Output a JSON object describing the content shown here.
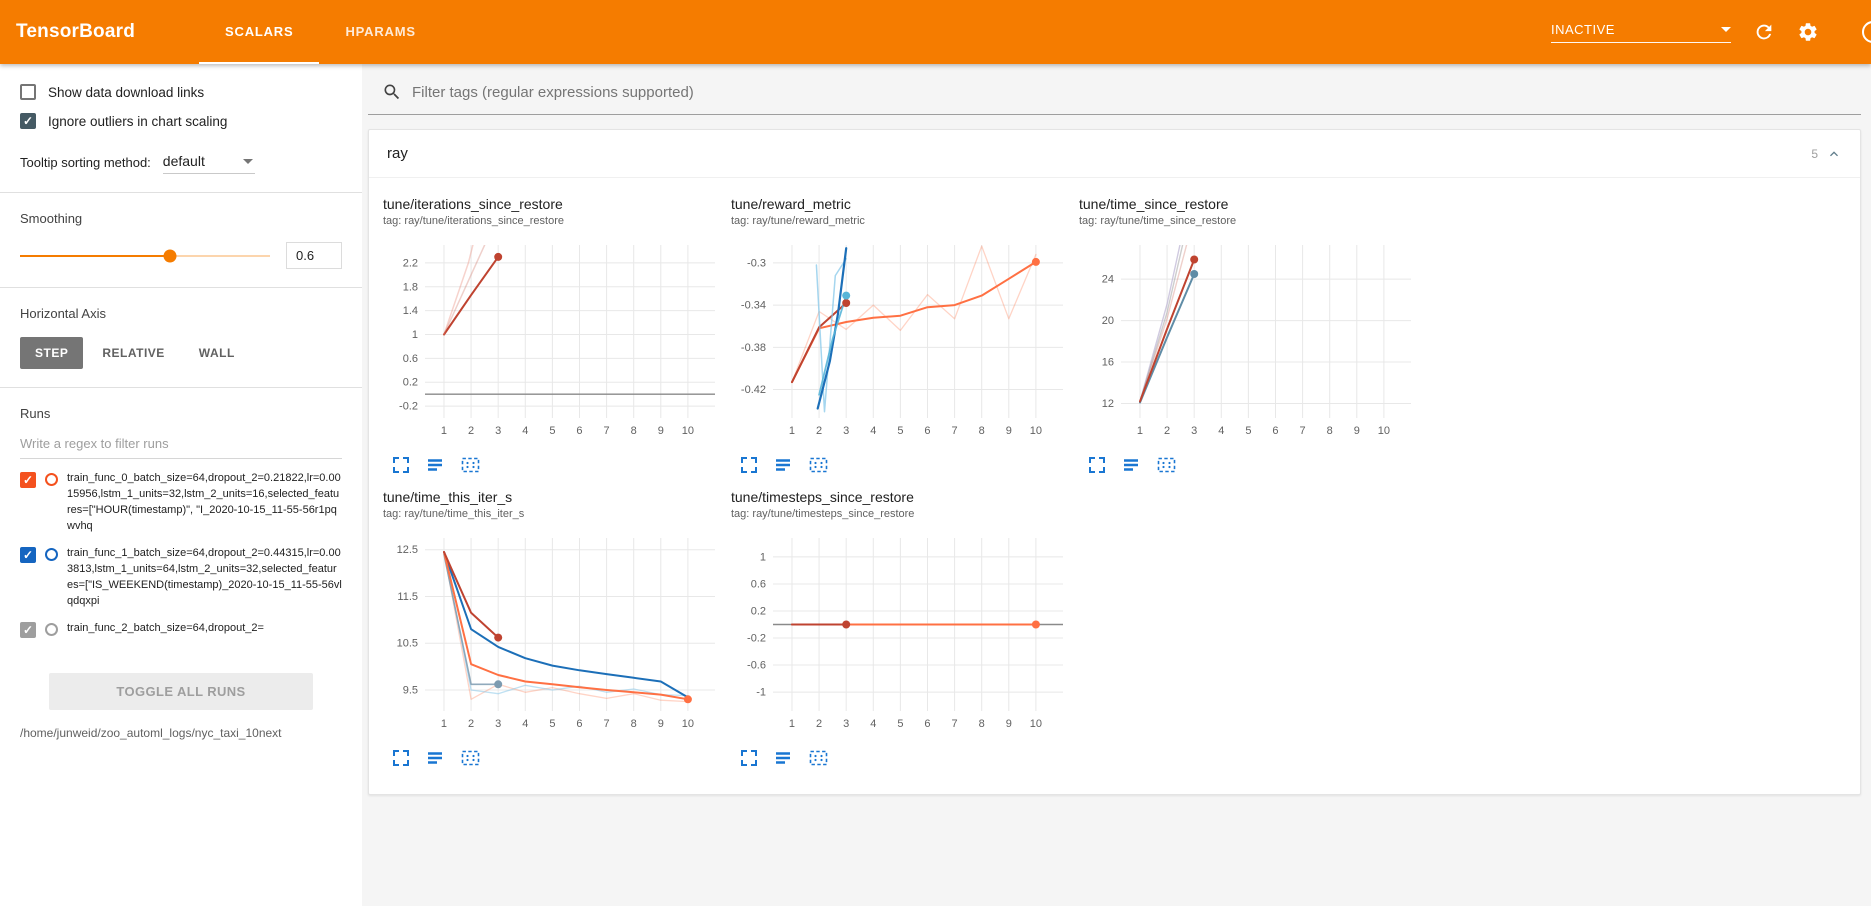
{
  "header": {
    "logo": "TensorBoard",
    "tabs": [
      {
        "label": "SCALARS",
        "active": true
      },
      {
        "label": "HPARAMS",
        "active": false
      }
    ],
    "status_dropdown": "INACTIVE",
    "icons": {
      "refresh": "refresh-icon",
      "settings": "gear-icon",
      "help": "help-icon",
      "dropdown": "chevron-down-icon"
    }
  },
  "sidebar": {
    "checkboxes": [
      {
        "label": "Show data download links",
        "checked": false
      },
      {
        "label": "Ignore outliers in chart scaling",
        "checked": true
      }
    ],
    "tooltip_sort": {
      "label": "Tooltip sorting method:",
      "value": "default"
    },
    "smoothing": {
      "label": "Smoothing",
      "value": "0.6",
      "percent": 60,
      "accent": "#f57c00"
    },
    "horizontal_axis": {
      "label": "Horizontal Axis",
      "options": [
        "STEP",
        "RELATIVE",
        "WALL"
      ],
      "selected": "STEP"
    },
    "runs": {
      "label": "Runs",
      "filter_placeholder": "Write a regex to filter runs",
      "items": [
        {
          "label": "train_func_0_batch_size=64,dropout_2=0.21822,lr=0.0015956,lstm_1_units=32,lstm_2_units=16,selected_features=[\"HOUR(timestamp)\", \"I_2020-10-15_11-55-56r1pqwvhq",
          "checked": true,
          "color": "#f4511e"
        },
        {
          "label": "train_func_1_batch_size=64,dropout_2=0.44315,lr=0.003813,lstm_1_units=64,lstm_2_units=32,selected_features=[\"IS_WEEKEND(timestamp)_2020-10-15_11-55-56vlqdqxpi",
          "checked": true,
          "color": "#1565c0"
        },
        {
          "label": "train_func_2_batch_size=64,dropout_2=",
          "checked": true,
          "color": "#9e9e9e"
        }
      ],
      "toggle_all_label": "TOGGLE ALL RUNS",
      "log_dir": "/home/junweid/zoo_automl_logs/nyc_taxi_10next"
    }
  },
  "main": {
    "filter_placeholder": "Filter tags (regular expressions supported)",
    "card": {
      "title": "ray",
      "count": "5"
    }
  },
  "chart_actions": [
    {
      "name": "expand-icon"
    },
    {
      "name": "data-table-icon"
    },
    {
      "name": "fit-domain-icon"
    }
  ],
  "chart_data": [
    {
      "type": "line",
      "title": "tune/iterations_since_restore",
      "subtitle": "tag: ray/tune/iterations_since_restore",
      "xlim": [
        0.3,
        11.0
      ],
      "ylim": [
        -0.4,
        2.5
      ],
      "xticks": [
        1,
        2,
        3,
        4,
        5,
        6,
        7,
        8,
        9,
        10
      ],
      "yticks": [
        -0.2,
        0.2,
        0.6,
        1,
        1.4,
        1.8,
        2.2
      ],
      "zero_line": true,
      "series": [
        {
          "name": "train_func_0_smoothed",
          "color": "#bf4330",
          "width": 2,
          "opacity": 1,
          "end_dot": true,
          "points": [
            [
              1,
              1.0
            ],
            [
              2,
              1.66
            ],
            [
              3,
              2.3
            ]
          ]
        },
        {
          "name": "train_func_0_raw",
          "color": "#bf4330",
          "width": 1.5,
          "opacity": 0.25,
          "points": [
            [
              1,
              1.0
            ],
            [
              2,
              2.0
            ],
            [
              3,
              3.0
            ]
          ]
        },
        {
          "name": "run_raw_faint",
          "color": "#e88070",
          "width": 1.5,
          "opacity": 0.35,
          "points": [
            [
              1,
              1.0
            ],
            [
              1.9,
              2.2
            ],
            [
              2.4,
              3.1
            ]
          ]
        }
      ]
    },
    {
      "type": "line",
      "title": "tune/reward_metric",
      "subtitle": "tag: ray/tune/reward_metric",
      "xlim": [
        0.3,
        11.0
      ],
      "ylim": [
        -0.447,
        -0.283
      ],
      "xticks": [
        1,
        2,
        3,
        4,
        5,
        6,
        7,
        8,
        9,
        10
      ],
      "yticks": [
        -0.42,
        -0.38,
        -0.34,
        -0.3
      ],
      "zero_line": false,
      "series": [
        {
          "name": "train_func_0_raw",
          "color": "#ff7043",
          "width": 1.3,
          "opacity": 0.3,
          "points": [
            [
              1,
              -0.413
            ],
            [
              2,
              -0.346
            ],
            [
              3,
              -0.363
            ],
            [
              4,
              -0.34
            ],
            [
              5,
              -0.364
            ],
            [
              6,
              -0.33
            ],
            [
              7,
              -0.353
            ],
            [
              8,
              -0.284
            ],
            [
              9,
              -0.353
            ],
            [
              10,
              -0.292
            ]
          ]
        },
        {
          "name": "train_func_0_smoothed",
          "color": "#ff7043",
          "width": 2,
          "opacity": 1,
          "end_dot": true,
          "points": [
            [
              1,
              -0.413
            ],
            [
              2,
              -0.362
            ],
            [
              3,
              -0.356
            ],
            [
              4,
              -0.352
            ],
            [
              5,
              -0.35
            ],
            [
              6,
              -0.342
            ],
            [
              7,
              -0.34
            ],
            [
              8,
              -0.331
            ],
            [
              9,
              -0.315
            ],
            [
              10,
              -0.299
            ]
          ]
        },
        {
          "name": "run_red_smoothed",
          "color": "#bf4330",
          "width": 2,
          "opacity": 1,
          "end_dot": true,
          "points": [
            [
              1,
              -0.413
            ],
            [
              2,
              -0.361
            ],
            [
              3,
              -0.338
            ]
          ]
        },
        {
          "name": "train_func_1_raw",
          "color": "#7fc4e8",
          "width": 1.5,
          "opacity": 0.7,
          "points": [
            [
              1.9,
              -0.302
            ],
            [
              2.2,
              -0.441
            ],
            [
              2.6,
              -0.312
            ],
            [
              3,
              -0.296
            ]
          ]
        },
        {
          "name": "train_func_1_smoothed",
          "color": "#1c6fb8",
          "width": 2.2,
          "opacity": 1,
          "points": [
            [
              1.95,
              -0.438
            ],
            [
              2.4,
              -0.393
            ],
            [
              2.7,
              -0.348
            ],
            [
              3,
              -0.286
            ]
          ]
        },
        {
          "name": "run_lightblue_smoothed",
          "color": "#58b5d8",
          "width": 1.8,
          "opacity": 0.9,
          "end_dot": true,
          "points": [
            [
              2.0,
              -0.425
            ],
            [
              2.5,
              -0.372
            ],
            [
              3,
              -0.331
            ]
          ]
        }
      ]
    },
    {
      "type": "line",
      "title": "tune/time_since_restore",
      "subtitle": "tag: ray/tune/time_since_restore",
      "xlim": [
        0.3,
        11.0
      ],
      "ylim": [
        10.6,
        27.3
      ],
      "xticks": [
        1,
        2,
        3,
        4,
        5,
        6,
        7,
        8,
        9,
        10
      ],
      "yticks": [
        12,
        16,
        20,
        24
      ],
      "zero_line": false,
      "series": [
        {
          "name": "raw_lavender",
          "color": "#b0a6cc",
          "width": 1.4,
          "opacity": 0.6,
          "points": [
            [
              1,
              12.2
            ],
            [
              2,
              21.6
            ],
            [
              2.5,
              27.6
            ]
          ]
        },
        {
          "name": "raw_gray",
          "color": "#9e9e9e",
          "width": 1.4,
          "opacity": 0.5,
          "points": [
            [
              1,
              12.2
            ],
            [
              2,
              20.8
            ],
            [
              2.6,
              27.6
            ]
          ]
        },
        {
          "name": "raw_red",
          "color": "#bf4330",
          "width": 1.4,
          "opacity": 0.25,
          "points": [
            [
              1,
              12.2
            ],
            [
              2,
              20.2
            ],
            [
              2.75,
              27.6
            ]
          ]
        },
        {
          "name": "train_func_1_smoothed",
          "color": "#5f8ca6",
          "width": 2,
          "opacity": 1,
          "end_dot": true,
          "points": [
            [
              1,
              12.1
            ],
            [
              2,
              18.4
            ],
            [
              3,
              24.5
            ]
          ]
        },
        {
          "name": "train_func_0_smoothed",
          "color": "#bf4330",
          "width": 2,
          "opacity": 1,
          "end_dot": true,
          "points": [
            [
              1,
              12.2
            ],
            [
              2,
              19.2
            ],
            [
              3,
              25.9
            ]
          ]
        }
      ]
    },
    {
      "type": "line",
      "title": "tune/time_this_iter_s",
      "subtitle": "tag: ray/tune/time_this_iter_s",
      "xlim": [
        0.3,
        11.0
      ],
      "ylim": [
        9.05,
        12.75
      ],
      "xticks": [
        1,
        2,
        3,
        4,
        5,
        6,
        7,
        8,
        9,
        10
      ],
      "yticks": [
        9.5,
        10.5,
        11.5,
        12.5
      ],
      "zero_line": false,
      "series": [
        {
          "name": "raw_orange",
          "color": "#ff7043",
          "width": 1.3,
          "opacity": 0.3,
          "points": [
            [
              1,
              12.45
            ],
            [
              2,
              9.3
            ],
            [
              3,
              9.62
            ],
            [
              4,
              9.45
            ],
            [
              5,
              9.55
            ],
            [
              6,
              9.42
            ],
            [
              7,
              9.32
            ],
            [
              8,
              9.42
            ],
            [
              9,
              9.28
            ],
            [
              10,
              9.25
            ]
          ]
        },
        {
          "name": "raw_lightblue",
          "color": "#7fc4e8",
          "width": 1.3,
          "opacity": 0.5,
          "points": [
            [
              1,
              12.45
            ],
            [
              2,
              9.5
            ],
            [
              3,
              9.42
            ],
            [
              4,
              9.6
            ],
            [
              5,
              9.5
            ],
            [
              6,
              9.58
            ],
            [
              7,
              9.45
            ],
            [
              8,
              9.52
            ],
            [
              9,
              9.4
            ],
            [
              10,
              9.38
            ]
          ]
        },
        {
          "name": "run_slate_raw",
          "color": "#7d9bb0",
          "width": 1.6,
          "opacity": 0.85,
          "end_dot": true,
          "points": [
            [
              1,
              12.4
            ],
            [
              2,
              9.62
            ],
            [
              3,
              9.62
            ]
          ]
        },
        {
          "name": "train_func_1_smoothed",
          "color": "#1c6fb8",
          "width": 2,
          "opacity": 1,
          "points": [
            [
              1,
              12.45
            ],
            [
              2,
              10.8
            ],
            [
              3,
              10.42
            ],
            [
              4,
              10.18
            ],
            [
              5,
              10.02
            ],
            [
              6,
              9.92
            ],
            [
              7,
              9.84
            ],
            [
              8,
              9.76
            ],
            [
              9,
              9.68
            ],
            [
              10,
              9.34
            ]
          ]
        },
        {
          "name": "run_orange_smoothed",
          "color": "#ff7043",
          "width": 2,
          "opacity": 1,
          "end_dot": true,
          "points": [
            [
              1,
              12.45
            ],
            [
              2,
              10.05
            ],
            [
              3,
              9.82
            ],
            [
              4,
              9.68
            ],
            [
              5,
              9.62
            ],
            [
              6,
              9.56
            ],
            [
              7,
              9.5
            ],
            [
              8,
              9.45
            ],
            [
              9,
              9.4
            ],
            [
              10,
              9.3
            ]
          ]
        },
        {
          "name": "train_func_0_smoothed",
          "color": "#bf4330",
          "width": 2,
          "opacity": 1,
          "end_dot": true,
          "points": [
            [
              1,
              12.45
            ],
            [
              2,
              11.15
            ],
            [
              3,
              10.62
            ]
          ]
        }
      ]
    },
    {
      "type": "line",
      "title": "tune/timesteps_since_restore",
      "subtitle": "tag: ray/tune/timesteps_since_restore",
      "xlim": [
        0.3,
        11.0
      ],
      "ylim": [
        -1.28,
        1.28
      ],
      "xticks": [
        1,
        2,
        3,
        4,
        5,
        6,
        7,
        8,
        9,
        10
      ],
      "yticks": [
        -1,
        -0.6,
        -0.2,
        0.2,
        0.6,
        1
      ],
      "zero_line": true,
      "series": [
        {
          "name": "train_func_0",
          "color": "#ff7043",
          "width": 2,
          "opacity": 1,
          "end_dot": true,
          "points": [
            [
              1,
              0
            ],
            [
              10,
              0
            ]
          ]
        },
        {
          "name": "run_red",
          "color": "#bf4330",
          "width": 2,
          "opacity": 1,
          "end_dot": true,
          "points": [
            [
              1,
              0
            ],
            [
              3,
              0
            ]
          ]
        }
      ]
    }
  ],
  "colors": {
    "header": "#f57c00",
    "chart_action_blue": "#1976d2",
    "checkbox_dark": "#455a64"
  }
}
